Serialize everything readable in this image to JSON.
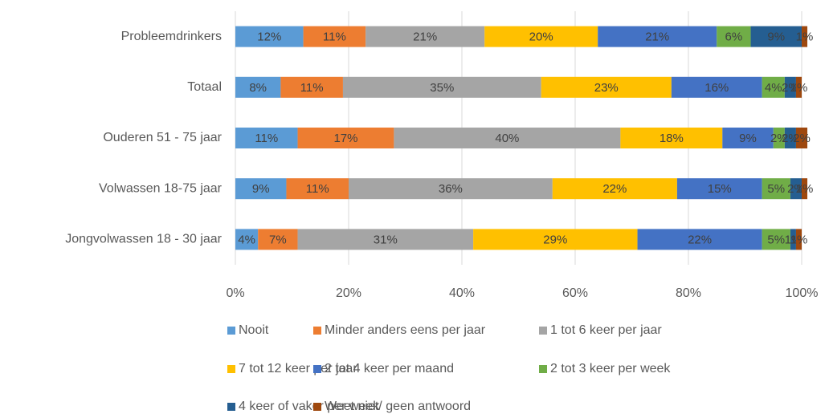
{
  "chart_data": {
    "type": "stacked_bar_horizontal",
    "categories": [
      "Probleemdrinkers",
      "Totaal",
      "Ouderen 51 - 75 jaar",
      "Volwassen 18-75 jaar",
      "Jongvolwassen 18 - 30 jaar"
    ],
    "series": [
      {
        "name": "Nooit",
        "color": "#5b9bd5",
        "values": [
          12,
          8,
          11,
          9,
          4
        ],
        "value_labels": [
          "12%",
          "8%",
          "11%",
          "9%",
          "4%"
        ]
      },
      {
        "name": "Minder anders eens per jaar",
        "color": "#ed7d31",
        "values": [
          11,
          11,
          17,
          11,
          7
        ],
        "value_labels": [
          "11%",
          "11%",
          "17%",
          "11%",
          "7%"
        ]
      },
      {
        "name": "1 tot 6 keer per jaar",
        "color": "#a5a5a5",
        "values": [
          21,
          35,
          40,
          36,
          31
        ],
        "value_labels": [
          "21%",
          "35%",
          "40%",
          "36%",
          "31%"
        ]
      },
      {
        "name": "7 tot 12 keer per jaar",
        "color": "#ffc000",
        "values": [
          20,
          23,
          18,
          22,
          29
        ],
        "value_labels": [
          "20%",
          "23%",
          "18%",
          "22%",
          "29%"
        ]
      },
      {
        "name": "2 tot 4 keer per maand",
        "color": "#4472c4",
        "values": [
          21,
          16,
          9,
          15,
          22
        ],
        "value_labels": [
          "21%",
          "16%",
          "9%",
          "15%",
          "22%"
        ]
      },
      {
        "name": "2 tot 3 keer per week",
        "color": "#70ad47",
        "values": [
          6,
          4,
          2,
          5,
          5
        ],
        "value_labels": [
          "6%",
          "4%",
          "2%",
          "5%",
          "5%"
        ]
      },
      {
        "name": "4 keer of vaker per week",
        "color": "#255e91",
        "values": [
          9,
          2,
          2,
          2,
          1
        ],
        "value_labels": [
          "9%",
          "2%",
          "2%",
          "2%",
          "1%"
        ]
      },
      {
        "name": "Weet niet/ geen antwoord",
        "color": "#9e480e",
        "values": [
          1,
          1,
          2,
          1,
          1
        ],
        "value_labels": [
          "1%",
          "1%",
          "2%",
          "1%",
          "1%"
        ]
      }
    ],
    "xlim": [
      0,
      100
    ],
    "xticks": [
      {
        "value": 0,
        "label": "0%"
      },
      {
        "value": 20,
        "label": "20%"
      },
      {
        "value": 40,
        "label": "40%"
      },
      {
        "value": 60,
        "label": "60%"
      },
      {
        "value": 80,
        "label": "80%"
      },
      {
        "value": 100,
        "label": "100%"
      }
    ],
    "grid": true,
    "legend": "bottom"
  }
}
